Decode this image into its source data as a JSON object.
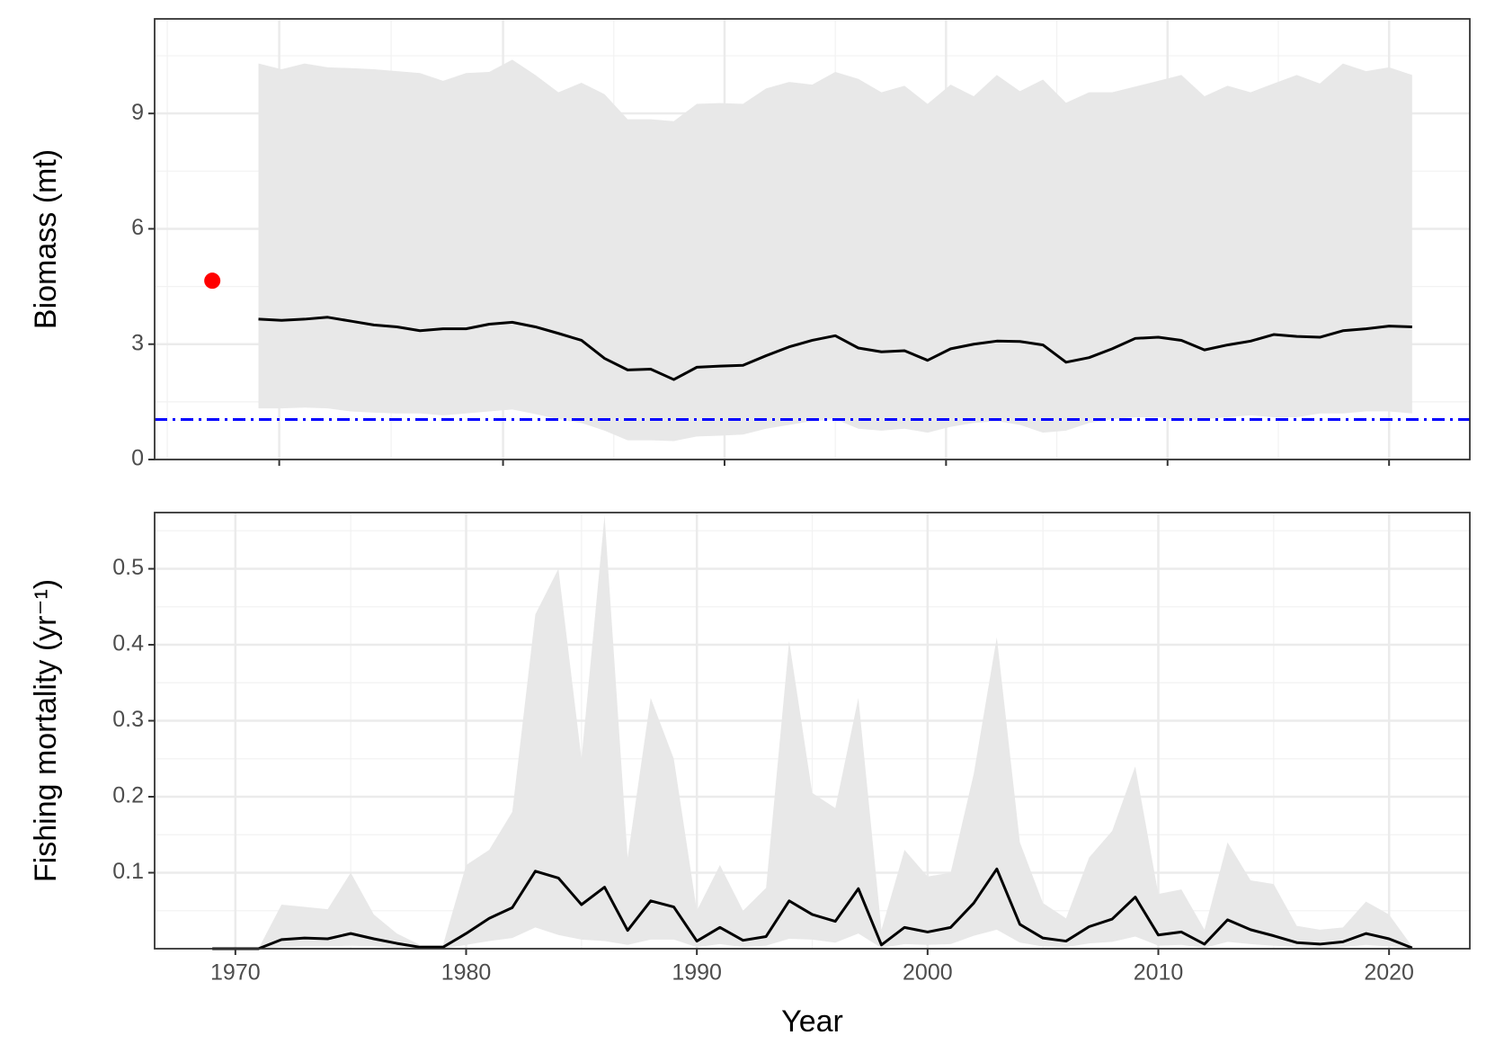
{
  "chart_data": [
    {
      "type": "line",
      "ylabel": "Biomass (mt)",
      "xlim": [
        1966.5,
        2023.5
      ],
      "xticks": [
        1971.9,
        1981.6,
        1991.2,
        2000.8,
        2010.4,
        2020.0
      ],
      "ylim": [
        0,
        11.46
      ],
      "yticks": [
        0,
        3,
        6,
        9
      ],
      "grid": true,
      "x": [
        1971,
        1972,
        1973,
        1974,
        1975,
        1976,
        1977,
        1978,
        1979,
        1980,
        1981,
        1982,
        1983,
        1984,
        1985,
        1986,
        1987,
        1988,
        1989,
        1990,
        1991,
        1992,
        1993,
        1994,
        1995,
        1996,
        1997,
        1998,
        1999,
        2000,
        2001,
        2002,
        2003,
        2004,
        2005,
        2006,
        2007,
        2008,
        2009,
        2010,
        2011,
        2012,
        2013,
        2014,
        2015,
        2016,
        2017,
        2018,
        2019,
        2020,
        2021
      ],
      "values": [
        3.65,
        3.62,
        3.65,
        3.7,
        3.6,
        3.5,
        3.45,
        3.35,
        3.4,
        3.4,
        3.52,
        3.57,
        3.45,
        3.28,
        3.1,
        2.63,
        2.33,
        2.35,
        2.08,
        2.4,
        2.43,
        2.45,
        2.7,
        2.93,
        3.1,
        3.22,
        2.9,
        2.8,
        2.83,
        2.58,
        2.88,
        3.0,
        3.08,
        3.07,
        2.98,
        2.53,
        2.65,
        2.88,
        3.15,
        3.18,
        3.1,
        2.85,
        2.98,
        3.08,
        3.25,
        3.2,
        3.18,
        3.35,
        3.4,
        3.47,
        3.45
      ],
      "upper": [
        10.3,
        10.15,
        10.3,
        10.2,
        10.18,
        10.15,
        10.1,
        10.05,
        9.85,
        10.05,
        10.08,
        10.4,
        10.0,
        9.55,
        9.8,
        9.5,
        8.85,
        8.85,
        8.8,
        9.25,
        9.27,
        9.25,
        9.65,
        9.82,
        9.75,
        10.08,
        9.9,
        9.55,
        9.72,
        9.25,
        9.75,
        9.45,
        10.0,
        9.58,
        9.88,
        9.28,
        9.55,
        9.55,
        9.7,
        9.85,
        10.0,
        9.45,
        9.72,
        9.55,
        9.78,
        10.0,
        9.78,
        10.3,
        10.1,
        10.2,
        10.0
      ],
      "lower": [
        1.33,
        1.33,
        1.35,
        1.33,
        1.25,
        1.22,
        1.2,
        1.2,
        1.15,
        1.2,
        1.25,
        1.3,
        1.18,
        1.05,
        0.95,
        0.75,
        0.5,
        0.5,
        0.48,
        0.6,
        0.62,
        0.65,
        0.8,
        0.9,
        1.0,
        1.05,
        0.8,
        0.75,
        0.8,
        0.7,
        0.85,
        0.95,
        1.0,
        0.9,
        0.7,
        0.75,
        0.95,
        1.05,
        1.1,
        1.1,
        1.0,
        1.05,
        1.1,
        1.15,
        1.1,
        1.1,
        1.2,
        1.2,
        1.25,
        1.25,
        1.2
      ],
      "color": "#000000",
      "band_color": "#e8e8e8",
      "points": {
        "x": [
          1969
        ],
        "values": [
          4.65
        ],
        "color": "#ff0000"
      },
      "hline": {
        "value": 1.04,
        "color": "#0000ff"
      }
    },
    {
      "type": "line",
      "ylabel": "Fishing mortality (yr⁻¹)",
      "xlabel": "Year",
      "xlim": [
        1966.5,
        2023.5
      ],
      "xticks": [
        1970,
        1980,
        1990,
        2000,
        2010,
        2020
      ],
      "ylim": [
        0,
        0.574
      ],
      "yticks": [
        0.1,
        0.2,
        0.3,
        0.4,
        0.5
      ],
      "grid": true,
      "x": [
        1969,
        1970,
        1971,
        1972,
        1973,
        1974,
        1975,
        1976,
        1977,
        1978,
        1979,
        1980,
        1981,
        1982,
        1983,
        1984,
        1985,
        1986,
        1987,
        1988,
        1989,
        1990,
        1991,
        1992,
        1993,
        1994,
        1995,
        1996,
        1997,
        1998,
        1999,
        2000,
        2001,
        2002,
        2003,
        2004,
        2005,
        2006,
        2007,
        2008,
        2009,
        2010,
        2011,
        2012,
        2013,
        2014,
        2015,
        2016,
        2017,
        2018,
        2019,
        2020,
        2021
      ],
      "values": [
        0,
        0,
        0,
        0.012,
        0.014,
        0.013,
        0.02,
        0.013,
        0.007,
        0.002,
        0.002,
        0.02,
        0.04,
        0.054,
        0.102,
        0.093,
        0.058,
        0.081,
        0.024,
        0.063,
        0.055,
        0.01,
        0.028,
        0.011,
        0.016,
        0.063,
        0.045,
        0.036,
        0.079,
        0.005,
        0.028,
        0.022,
        0.028,
        0.06,
        0.105,
        0.032,
        0.014,
        0.01,
        0.029,
        0.039,
        0.068,
        0.018,
        0.022,
        0.006,
        0.038,
        0.025,
        0.017,
        0.008,
        0.006,
        0.009,
        0.02,
        0.013,
        0.001
      ],
      "upper": [
        0,
        0,
        0,
        0.058,
        0.055,
        0.052,
        0.1,
        0.045,
        0.02,
        0.005,
        0.005,
        0.11,
        0.13,
        0.18,
        0.44,
        0.5,
        0.25,
        0.57,
        0.12,
        0.33,
        0.25,
        0.05,
        0.11,
        0.05,
        0.08,
        0.405,
        0.205,
        0.185,
        0.33,
        0.025,
        0.13,
        0.095,
        0.1,
        0.23,
        0.41,
        0.14,
        0.06,
        0.04,
        0.12,
        0.155,
        0.24,
        0.072,
        0.078,
        0.025,
        0.14,
        0.09,
        0.085,
        0.03,
        0.025,
        0.028,
        0.062,
        0.045,
        0.003
      ],
      "lower": [
        0,
        0,
        0,
        0.002,
        0.003,
        0.003,
        0.004,
        0.003,
        0.001,
        0,
        0,
        0.005,
        0.01,
        0.014,
        0.028,
        0.018,
        0.012,
        0.01,
        0.005,
        0.012,
        0.012,
        0.002,
        0.006,
        0.002,
        0.004,
        0.013,
        0.012,
        0.008,
        0.02,
        0.001,
        0.006,
        0.005,
        0.006,
        0.017,
        0.025,
        0.008,
        0.003,
        0.002,
        0.007,
        0.009,
        0.016,
        0.004,
        0.005,
        0.001,
        0.009,
        0.006,
        0.004,
        0.002,
        0.001,
        0.002,
        0.005,
        0.003,
        0
      ],
      "color": "#000000",
      "band_color": "#e8e8e8"
    }
  ]
}
